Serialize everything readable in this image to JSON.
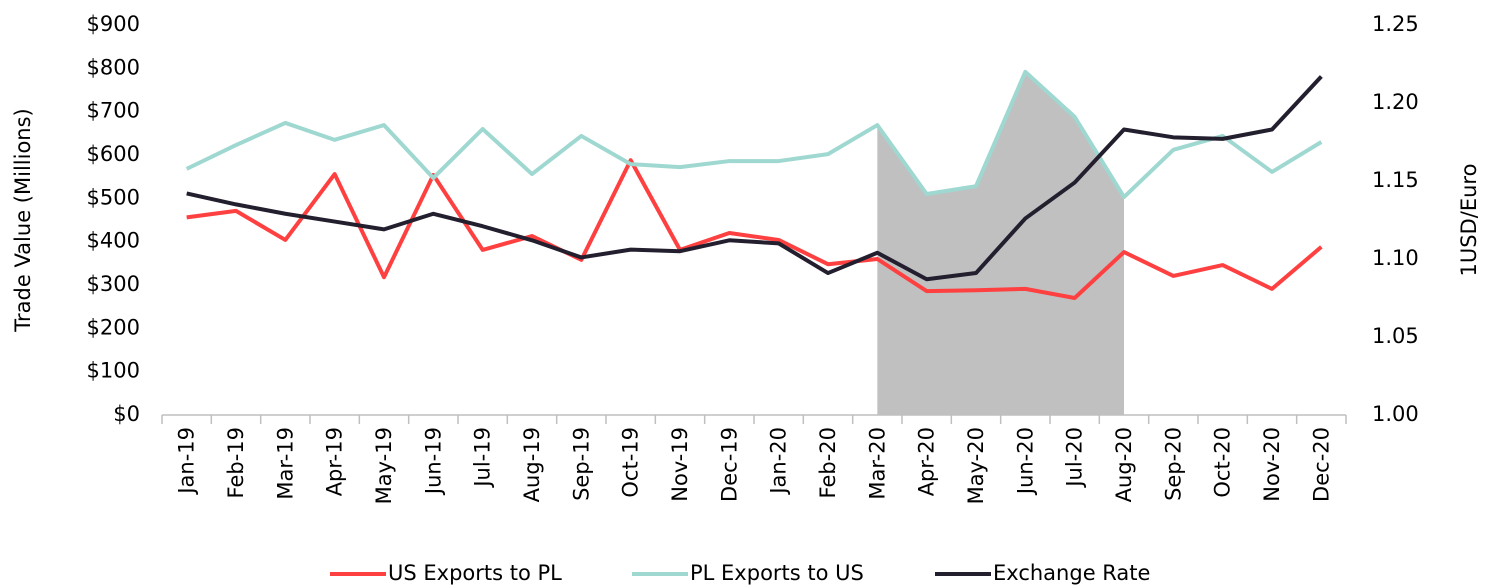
{
  "chart_data": {
    "type": "line",
    "y_label": "Trade Value (Millions)",
    "y2_label": "1USD/Euro",
    "categories": [
      "Jan-19",
      "Feb-19",
      "Mar-19",
      "Apr-19",
      "May-19",
      "Jun-19",
      "Jul-19",
      "Aug-19",
      "Sep-19",
      "Oct-19",
      "Nov-19",
      "Dec-19",
      "Jan-20",
      "Feb-20",
      "Mar-20",
      "Apr-20",
      "May-20",
      "Jun-20",
      "Jul-20",
      "Aug-20",
      "Sep-20",
      "Oct-20",
      "Nov-20",
      "Dec-20"
    ],
    "series": [
      {
        "name": "US Exports to PL",
        "color": "#ff4040",
        "values": [
          456,
          471,
          404,
          556,
          318,
          554,
          381,
          413,
          358,
          588,
          381,
          420,
          404,
          348,
          360,
          286,
          288,
          291,
          270,
          376,
          321,
          346,
          291,
          388
        ]
      },
      {
        "name": "PL Exports to US",
        "color": "#9fd8d0",
        "values": [
          568,
          623,
          674,
          635,
          669,
          547,
          660,
          556,
          644,
          579,
          572,
          586,
          586,
          602,
          669,
          510,
          528,
          792,
          688,
          503,
          612,
          644,
          561,
          630
        ]
      },
      {
        "name": "Exchange Rate",
        "color": "#231f2e",
        "axis": "y2",
        "values": [
          1.142,
          1.135,
          1.129,
          1.124,
          1.119,
          1.129,
          1.121,
          1.112,
          1.101,
          1.106,
          1.105,
          1.112,
          1.11,
          1.091,
          1.104,
          1.087,
          1.091,
          1.126,
          1.149,
          1.183,
          1.178,
          1.177,
          1.183,
          1.217
        ]
      }
    ],
    "shade": {
      "series": 1,
      "from": "Mar-20",
      "to": "Aug-20",
      "color": "#c0c0c0"
    },
    "ylim": [
      0,
      900
    ],
    "yticks": [
      {
        "value": 0,
        "label": "$0"
      },
      {
        "value": 100,
        "label": "$100"
      },
      {
        "value": 200,
        "label": "$200"
      },
      {
        "value": 300,
        "label": "$300"
      },
      {
        "value": 400,
        "label": "$400"
      },
      {
        "value": 500,
        "label": "$500"
      },
      {
        "value": 600,
        "label": "$600"
      },
      {
        "value": 700,
        "label": "$700"
      },
      {
        "value": 800,
        "label": "$800"
      },
      {
        "value": 900,
        "label": "$900"
      }
    ],
    "y2lim": [
      1.0,
      1.25
    ],
    "y2ticks": [
      {
        "value": 1.0,
        "label": "1.00"
      },
      1.05,
      {
        "value": 1.1,
        "label": "1.10"
      },
      1.15,
      {
        "value": 1.2,
        "label": "1.20"
      },
      1.25
    ],
    "grid": false,
    "legend": "bottom"
  }
}
